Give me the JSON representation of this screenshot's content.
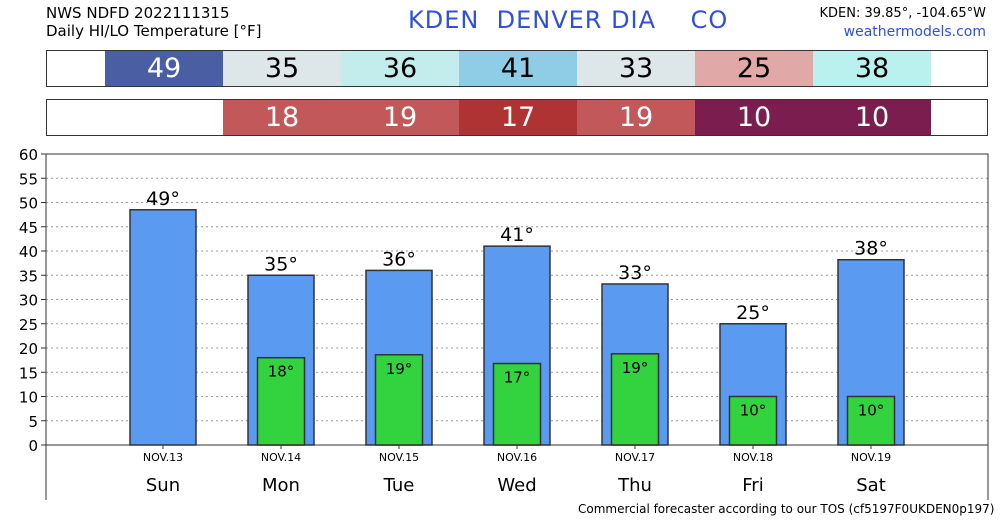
{
  "header": {
    "line1": "NWS NDFD 2022111315",
    "line2": "Daily HI/LO Temperature [°F]",
    "station": "KDEN  DENVER DIA    CO",
    "coords": "KDEN: 39.85°, -104.65°W",
    "site": "weathermodels.com"
  },
  "hi_strip": [
    {
      "value": "49",
      "color": "#4a5ea3",
      "text_color": "#ffffff"
    },
    {
      "value": "35",
      "color": "#dde6e8",
      "text_color": "#000000"
    },
    {
      "value": "36",
      "color": "#c3ecec",
      "text_color": "#000000"
    },
    {
      "value": "41",
      "color": "#8fcde6",
      "text_color": "#000000"
    },
    {
      "value": "33",
      "color": "#dde6e8",
      "text_color": "#000000"
    },
    {
      "value": "25",
      "color": "#e0a8a6",
      "text_color": "#000000"
    },
    {
      "value": "38",
      "color": "#baf0ee",
      "text_color": "#000000"
    }
  ],
  "lo_strip": [
    {
      "value": "18",
      "color": "#c2585a",
      "text_color": "#ffffff"
    },
    {
      "value": "19",
      "color": "#c2585a",
      "text_color": "#ffffff"
    },
    {
      "value": "17",
      "color": "#b03334",
      "text_color": "#ffffff"
    },
    {
      "value": "19",
      "color": "#c2585a",
      "text_color": "#ffffff"
    },
    {
      "value": "10",
      "color": "#7b1e4f",
      "text_color": "#ffffff"
    },
    {
      "value": "10",
      "color": "#7b1e4f",
      "text_color": "#ffffff"
    }
  ],
  "chart_data": {
    "type": "bar",
    "dates": [
      "NOV.13",
      "NOV.14",
      "NOV.15",
      "NOV.16",
      "NOV.17",
      "NOV.18",
      "NOV.19"
    ],
    "days": [
      "Sun",
      "Mon",
      "Tue",
      "Wed",
      "Thu",
      "Fri",
      "Sat"
    ],
    "series": [
      {
        "values": [
          48.5,
          35,
          36,
          41,
          33.2,
          25,
          38.2
        ],
        "labels": [
          "49°",
          "35°",
          "36°",
          "41°",
          "33°",
          "25°",
          "38°"
        ],
        "color": "#5a9af0"
      },
      {
        "values": [
          null,
          18,
          18.6,
          16.8,
          18.8,
          10,
          10
        ],
        "labels": [
          "",
          "18°",
          "19°",
          "17°",
          "19°",
          "10°",
          "10°"
        ],
        "color": "#33d23f"
      }
    ],
    "ylim": [
      0,
      60
    ],
    "yticks": [
      0,
      5,
      10,
      15,
      20,
      25,
      30,
      35,
      40,
      45,
      50,
      55,
      60
    ],
    "grid": true
  },
  "footer": "Commercial forecaster according to our TOS (cf5197F0UKDEN0p197)"
}
